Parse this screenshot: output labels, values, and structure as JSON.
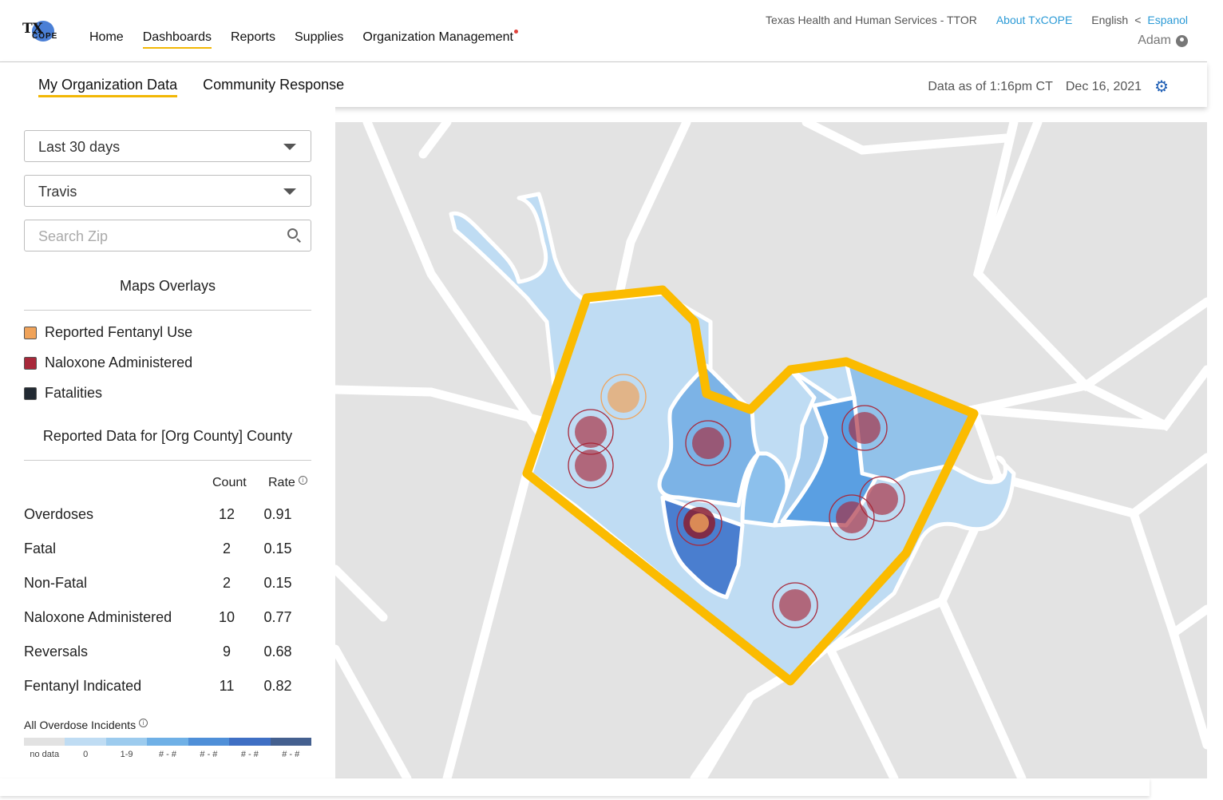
{
  "logo": {
    "tx": "TX",
    "cope": "COPE"
  },
  "nav": {
    "home": "Home",
    "dashboards": "Dashboards",
    "reports": "Reports",
    "supplies": "Supplies",
    "org_management": "Organization Management"
  },
  "top": {
    "agency": "Texas Health and Human Services - TTOR",
    "about": "About TxCOPE",
    "english": "English",
    "sep": "<",
    "espanol": "Espanol",
    "user": "Adam"
  },
  "subtabs": {
    "my_org": "My Organization Data",
    "community": "Community Response"
  },
  "asof": {
    "time": "Data as of 1:16pm CT",
    "date": "Dec 16, 2021"
  },
  "filters": {
    "period": "Last 30 days",
    "county": "Travis",
    "zip_placeholder": "Search Zip"
  },
  "overlays": {
    "title": "Maps Overlays",
    "items": [
      {
        "label": "Reported Fentanyl Use",
        "color": "#f0a35a"
      },
      {
        "label": "Naloxone Administered",
        "color": "#a8283a"
      },
      {
        "label": "Fatalities",
        "color": "#222a33"
      }
    ]
  },
  "reported": {
    "title": "Reported Data for [Org County] County",
    "count_header": "Count",
    "rate_header": "Rate",
    "rows": [
      {
        "label": "Overdoses",
        "count": "12",
        "rate": "0.91"
      },
      {
        "label": "Fatal",
        "count": "2",
        "rate": "0.15"
      },
      {
        "label": "Non-Fatal",
        "count": "2",
        "rate": "0.15"
      },
      {
        "label": "Naloxone Administered",
        "count": "10",
        "rate": "0.77"
      },
      {
        "label": "Reversals",
        "count": "9",
        "rate": "0.68"
      },
      {
        "label": "Fentanyl Indicated",
        "count": "11",
        "rate": "0.82"
      }
    ]
  },
  "scale": {
    "title": "All Overdose Incidents",
    "labels": [
      "no data",
      "0",
      "1-9",
      "# - #",
      "# - #",
      "# - #",
      "# - #"
    ],
    "colors": [
      "#e2e2e2",
      "#bfdcf3",
      "#9ccbee",
      "#6fb0e6",
      "#4f8fd8",
      "#3f6fc4",
      "#44608f"
    ]
  },
  "colors": {
    "accent": "#f2b705",
    "link": "#2b9ad6",
    "map_bg": "#e3e3e3",
    "outline": "#fbbb00"
  }
}
